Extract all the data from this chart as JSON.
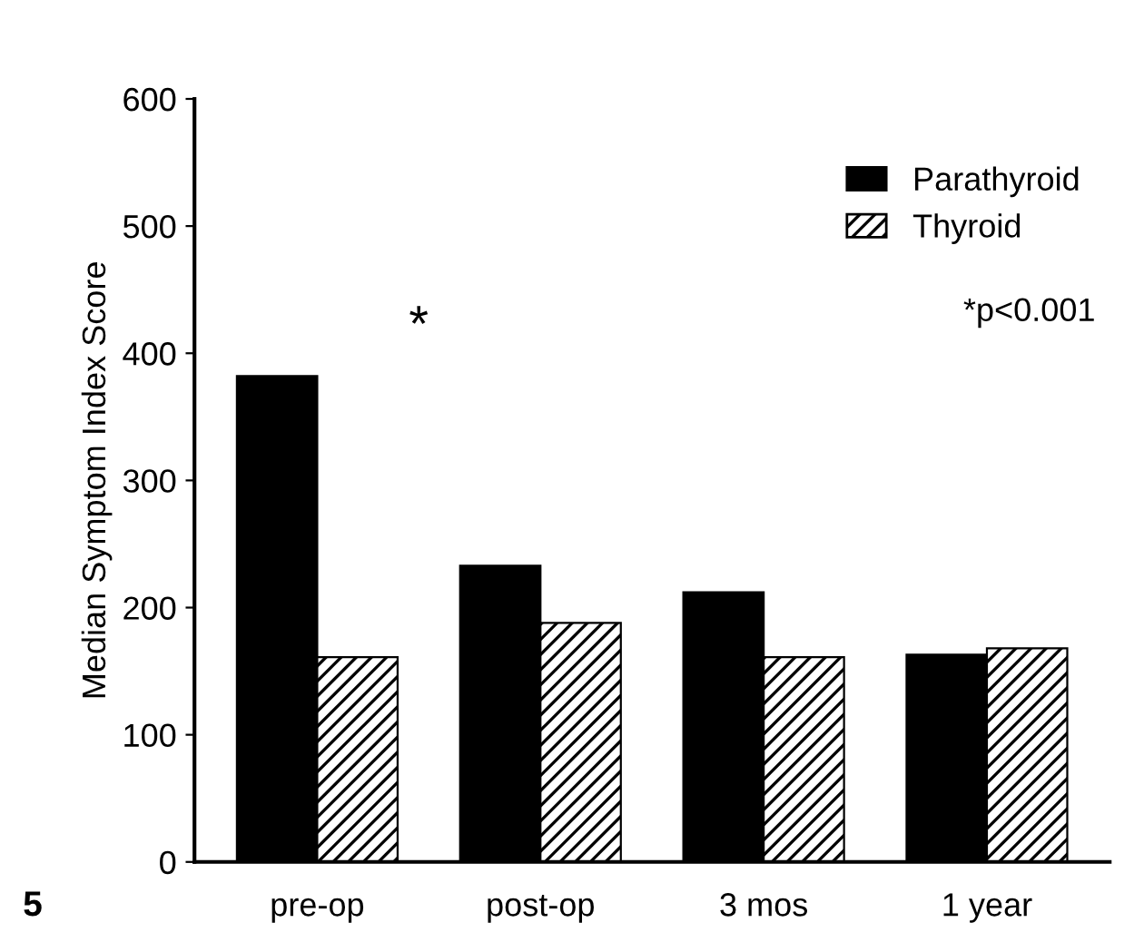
{
  "chart_data": {
    "type": "bar",
    "ylabel": "Median Symptom Index Score",
    "categories": [
      "pre-op",
      "post-op",
      "3 mos",
      "1 year"
    ],
    "series": [
      {
        "name": "Parathyroid",
        "color": "#000000",
        "values": [
          382,
          233,
          212,
          163
        ]
      },
      {
        "name": "Thyroid",
        "color": "#000000",
        "values": [
          161,
          188,
          161,
          168
        ]
      }
    ],
    "ylim": [
      0,
      600
    ],
    "yticks": [
      0,
      100,
      200,
      300,
      400,
      500,
      600
    ],
    "grid": false,
    "legend": "top right",
    "annotations": [
      "*",
      "*p<0.001",
      "5"
    ]
  }
}
